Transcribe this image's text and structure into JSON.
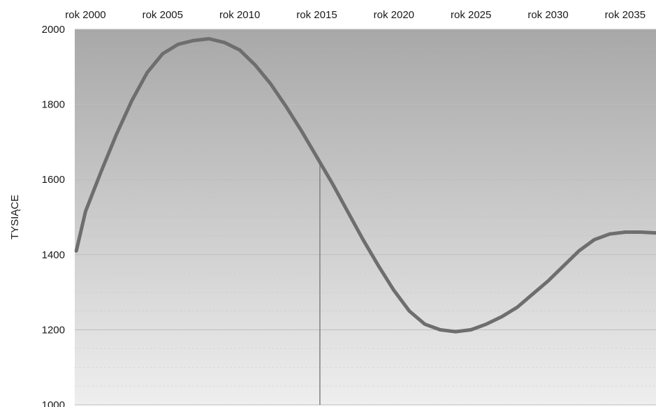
{
  "chart_data": {
    "type": "line",
    "title": "",
    "ylabel": "TYSIĄCE",
    "xlabel": "",
    "x_tick_labels": [
      "rok 2000",
      "rok 2005",
      "rok 2010",
      "rok 2015",
      "rok 2020",
      "rok 2025",
      "rok 2030",
      "rok 2035"
    ],
    "x_ticks": [
      2000,
      2005,
      2010,
      2015,
      2020,
      2025,
      2030,
      2035
    ],
    "xlim": [
      1999.3,
      2037.0
    ],
    "ylim": [
      1000,
      2000
    ],
    "y_ticks": [
      1000,
      1200,
      1400,
      1600,
      1800,
      2000
    ],
    "grid": true,
    "legend": "none",
    "marker_line_x": 2015.2,
    "colors": {
      "line": "#6e6e6e",
      "marker_line": "#808080",
      "plot_bg_top": "#a8a8a8",
      "plot_bg_bottom": "#eeeeee",
      "grid": "#bdbdbd"
    },
    "series": [
      {
        "x": [
          1999.4,
          2000.0,
          2001.0,
          2002.0,
          2003.0,
          2004.0,
          2005.0,
          2006.0,
          2007.0,
          2008.0,
          2009.0,
          2010.0,
          2011.0,
          2012.0,
          2013.0,
          2014.0,
          2015.0,
          2016.0,
          2017.0,
          2018.0,
          2019.0,
          2020.0,
          2021.0,
          2022.0,
          2023.0,
          2024.0,
          2025.0,
          2026.0,
          2027.0,
          2028.0,
          2029.0,
          2030.0,
          2031.0,
          2032.0,
          2033.0,
          2034.0,
          2035.0,
          2036.0,
          2037.0
        ],
        "values": [
          1410,
          1515,
          1620,
          1720,
          1810,
          1885,
          1935,
          1960,
          1970,
          1975,
          1965,
          1945,
          1905,
          1855,
          1795,
          1730,
          1660,
          1590,
          1515,
          1440,
          1370,
          1305,
          1250,
          1215,
          1200,
          1195,
          1200,
          1215,
          1235,
          1260,
          1295,
          1330,
          1370,
          1410,
          1440,
          1455,
          1460,
          1460,
          1458
        ]
      }
    ]
  }
}
